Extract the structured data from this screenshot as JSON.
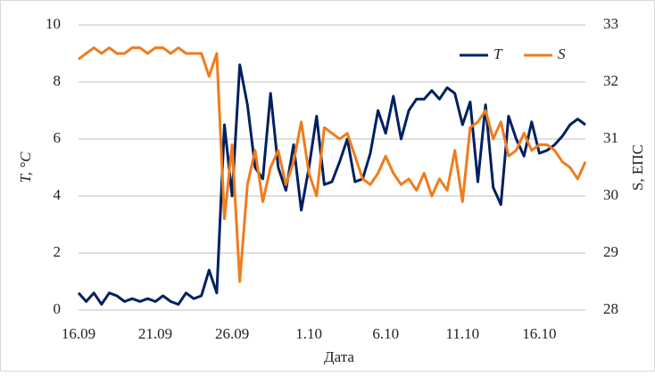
{
  "chart_data": {
    "type": "line",
    "x_label": "Дата",
    "y_label": "T, °C",
    "y2_label": "S, ЕПС",
    "x": [
      0,
      0.5,
      1,
      1.5,
      2,
      2.5,
      3,
      3.5,
      4,
      4.5,
      5,
      5.5,
      6,
      6.5,
      7,
      7.5,
      8,
      8.5,
      9,
      9.5,
      10,
      10.5,
      11,
      11.5,
      12,
      12.5,
      13,
      13.5,
      14,
      14.5,
      15,
      15.5,
      16,
      16.5,
      17,
      17.5,
      18,
      18.5,
      19,
      19.5,
      20,
      20.5,
      21,
      21.5,
      22,
      22.5,
      23,
      23.5,
      24,
      24.5,
      25,
      25.5,
      26,
      26.5,
      27,
      27.5,
      28,
      28.5,
      29,
      29.5,
      30,
      30.5,
      31,
      31.5,
      32,
      32.5,
      33
    ],
    "xlim": [
      0,
      33
    ],
    "xticks": [
      {
        "value": 0,
        "label": "16.09"
      },
      {
        "value": 5,
        "label": "21.09"
      },
      {
        "value": 10,
        "label": "26.09"
      },
      {
        "value": 15,
        "label": "1.10"
      },
      {
        "value": 20,
        "label": "6.10"
      },
      {
        "value": 25,
        "label": "11.10"
      },
      {
        "value": 30,
        "label": "16.10"
      }
    ],
    "ylim": [
      0,
      10
    ],
    "yticks": [
      0,
      2,
      4,
      6,
      8,
      10
    ],
    "y2lim": [
      28,
      33
    ],
    "y2ticks": [
      28,
      29,
      30,
      31,
      32,
      33
    ],
    "grid": true,
    "legend": "upper right",
    "series": [
      {
        "name": "T",
        "color": "#002060",
        "values": [
          0.6,
          0.3,
          0.6,
          0.2,
          0.6,
          0.5,
          0.3,
          0.4,
          0.3,
          0.4,
          0.3,
          0.5,
          0.3,
          0.2,
          0.6,
          0.4,
          0.5,
          1.4,
          0.6,
          6.5,
          4.0,
          8.6,
          7.2,
          5.0,
          4.6,
          7.6,
          5.0,
          4.2,
          5.8,
          3.5,
          5.0,
          6.8,
          4.4,
          4.5,
          5.2,
          6.0,
          4.5,
          4.6,
          5.5,
          7.0,
          6.2,
          7.5,
          6.0,
          7.0,
          7.4,
          7.4,
          7.7,
          7.4,
          7.8,
          7.6,
          6.5,
          7.3,
          4.5,
          7.2,
          4.3,
          3.7,
          6.8,
          6.0,
          5.4,
          6.6,
          5.5,
          5.6,
          5.8,
          6.1,
          6.5,
          6.7,
          6.5
        ]
      },
      {
        "name": "S",
        "color": "#f07c1c",
        "axis": "y2",
        "values": [
          32.4,
          32.5,
          32.6,
          32.5,
          32.6,
          32.5,
          32.5,
          32.6,
          32.6,
          32.5,
          32.6,
          32.6,
          32.5,
          32.6,
          32.5,
          32.5,
          32.5,
          32.1,
          32.5,
          29.6,
          30.9,
          28.5,
          30.2,
          30.8,
          29.9,
          30.5,
          30.8,
          30.2,
          30.6,
          31.3,
          30.4,
          30.0,
          31.2,
          31.1,
          31.0,
          31.1,
          30.7,
          30.3,
          30.2,
          30.4,
          30.7,
          30.4,
          30.2,
          30.3,
          30.1,
          30.4,
          30.0,
          30.3,
          30.1,
          30.8,
          29.9,
          31.2,
          31.3,
          31.5,
          31.0,
          31.3,
          30.7,
          30.8,
          31.1,
          30.8,
          30.9,
          30.9,
          30.8,
          30.6,
          30.5,
          30.3,
          30.6
        ]
      }
    ]
  }
}
